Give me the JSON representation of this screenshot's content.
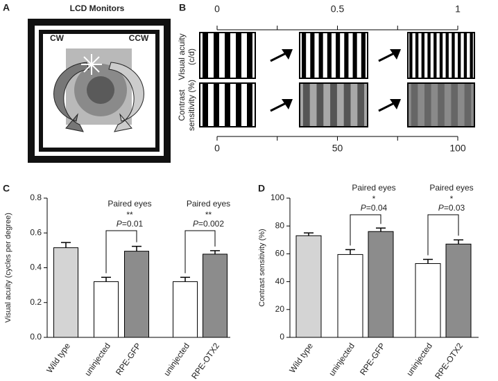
{
  "panel_labels": [
    "A",
    "B",
    "C",
    "D"
  ],
  "panel_a": {
    "title": "LCD Monitors",
    "labels": [
      "CW",
      "CCW"
    ]
  },
  "panel_b": {
    "top_scale": {
      "xlim": [
        0,
        1
      ],
      "ticks": [
        0,
        0.5,
        1
      ],
      "minor_ticks": [
        0.25,
        0.75
      ]
    },
    "bottom_scale": {
      "xlim": [
        0,
        100
      ],
      "ticks": [
        0,
        50,
        100
      ],
      "minor_ticks": [
        25,
        75
      ]
    },
    "row_labels": [
      [
        "Visual acuity",
        "(c/d)"
      ],
      [
        "Contrast",
        "sensitivity (%)"
      ]
    ]
  },
  "chart_data": [
    {
      "type": "bar",
      "ylabel": "Visual acuity (cycles per degree)",
      "categories": [
        "Wild type",
        "uninjected",
        "RPE-GFP",
        "uninjected",
        "RPE-OTX2"
      ],
      "values": [
        0.515,
        0.32,
        0.495,
        0.32,
        0.478
      ],
      "errors": [
        0.03,
        0.025,
        0.028,
        0.025,
        0.02
      ],
      "colors": [
        "#d4d4d4",
        "#ffffff",
        "#8c8c8c",
        "#ffffff",
        "#8c8c8c"
      ],
      "ylim": [
        0,
        0.8
      ],
      "yticks": [
        {
          "value": 0,
          "label": "0.0"
        },
        0.2,
        0.4,
        0.6,
        0.8
      ],
      "annotations": [
        {
          "pair": [
            1,
            2
          ],
          "title": "Paired eyes",
          "stars": "**",
          "p_label": "P",
          "p_value": "=0.01"
        },
        {
          "pair": [
            3,
            4
          ],
          "title": "Paired eyes",
          "stars": "**",
          "p_label": "P",
          "p_value": "=0.002"
        }
      ]
    },
    {
      "type": "bar",
      "ylabel": "Contrast sensitivity (%)",
      "categories": [
        "Wild type",
        "uninjected",
        "RPE-GFP",
        "uninjected",
        "RPE-OTX2"
      ],
      "values": [
        73,
        59.5,
        76,
        53,
        67
      ],
      "errors": [
        2,
        3.5,
        2.5,
        3,
        3
      ],
      "colors": [
        "#d4d4d4",
        "#ffffff",
        "#8c8c8c",
        "#ffffff",
        "#8c8c8c"
      ],
      "ylim": [
        0,
        100
      ],
      "yticks": [
        0,
        20,
        40,
        60,
        80,
        100
      ],
      "annotations": [
        {
          "pair": [
            1,
            2
          ],
          "title": "Paired eyes",
          "stars": "*",
          "p_label": "P",
          "p_value": "=0.04"
        },
        {
          "pair": [
            3,
            4
          ],
          "title": "Paired eyes",
          "stars": "*",
          "p_label": "P",
          "p_value": "=0.03"
        }
      ]
    }
  ]
}
